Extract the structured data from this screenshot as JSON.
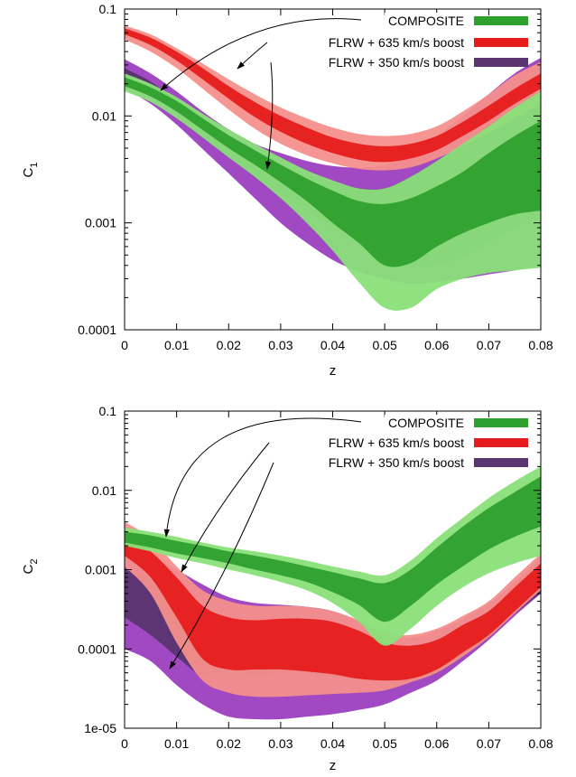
{
  "chart_data": [
    {
      "type": "area",
      "ylabel": "C",
      "ylabel_subscript": "1",
      "xlabel": "z",
      "xlim": [
        0,
        0.08
      ],
      "ylim": [
        0.0001,
        0.1
      ],
      "yscale": "log",
      "grid": false,
      "legend_position": "top-right",
      "x_ticks": [
        0,
        0.01,
        0.02,
        0.03,
        0.04,
        0.05,
        0.06,
        0.07,
        0.08
      ],
      "x_tick_labels": [
        "0",
        "0.01",
        "0.02",
        "0.03",
        "0.04",
        "0.05",
        "0.06",
        "0.07",
        "0.08"
      ],
      "y_ticks": [
        0.0001,
        0.001,
        0.01,
        0.1
      ],
      "y_tick_labels": [
        "0.0001",
        "0.001",
        "0.01",
        "0.1"
      ],
      "x": [
        0,
        0.005,
        0.01,
        0.015,
        0.02,
        0.025,
        0.03,
        0.035,
        0.04,
        0.045,
        0.05,
        0.055,
        0.06,
        0.065,
        0.07,
        0.075,
        0.08
      ],
      "series": [
        {
          "name": "FLRW + 350 km/s boost",
          "color_outer": "#9b3fc0",
          "color_inner": "#5a3570",
          "outer_upper": [
            0.034,
            0.025,
            0.017,
            0.011,
            0.0075,
            0.0055,
            0.0045,
            0.0038,
            0.0034,
            0.0033,
            0.0035,
            0.0045,
            0.0065,
            0.01,
            0.016,
            0.025,
            0.035
          ],
          "inner_upper": [
            0.028,
            0.021,
            0.014,
            0.0088,
            0.0058,
            0.0042,
            0.0033,
            0.0028,
            0.0024,
            0.0021,
            0.0021,
            0.0027,
            0.0038,
            0.0055,
            0.0085,
            0.013,
            0.019
          ],
          "inner_lower": [
            0.022,
            0.016,
            0.0105,
            0.0065,
            0.0042,
            0.0028,
            0.0019,
            0.0013,
            0.0009,
            0.00065,
            0.00045,
            0.00038,
            0.0004,
            0.00048,
            0.00065,
            0.0009,
            0.0012
          ],
          "outer_lower": [
            0.018,
            0.013,
            0.0083,
            0.0049,
            0.0029,
            0.0017,
            0.001,
            0.00065,
            0.00045,
            0.00035,
            0.0003,
            0.00027,
            0.00028,
            0.0003,
            0.00033,
            0.00036,
            0.0004
          ]
        },
        {
          "name": "FLRW + 635 km/s boost",
          "color_outer": "#f4908c",
          "color_inner": "#e61c1c",
          "outer_upper": [
            0.07,
            0.058,
            0.043,
            0.031,
            0.022,
            0.016,
            0.012,
            0.0095,
            0.0078,
            0.0068,
            0.0065,
            0.0068,
            0.008,
            0.011,
            0.016,
            0.024,
            0.032
          ],
          "inner_upper": [
            0.066,
            0.054,
            0.04,
            0.028,
            0.019,
            0.0135,
            0.01,
            0.0078,
            0.0063,
            0.0055,
            0.0052,
            0.0055,
            0.0065,
            0.0088,
            0.0125,
            0.018,
            0.025
          ],
          "inner_lower": [
            0.058,
            0.046,
            0.033,
            0.022,
            0.0145,
            0.0098,
            0.0071,
            0.0055,
            0.0045,
            0.0039,
            0.0037,
            0.004,
            0.0048,
            0.0065,
            0.009,
            0.013,
            0.018
          ],
          "outer_lower": [
            0.052,
            0.04,
            0.028,
            0.018,
            0.0115,
            0.0076,
            0.0055,
            0.0043,
            0.0036,
            0.0032,
            0.0031,
            0.0033,
            0.004,
            0.0052,
            0.007,
            0.0095,
            0.013
          ]
        },
        {
          "name": "COMPOSITE",
          "color_outer": "#8ae07a",
          "color_inner": "#2ea02e",
          "outer_upper": [
            0.025,
            0.02,
            0.015,
            0.0105,
            0.0075,
            0.0055,
            0.0041,
            0.0031,
            0.0025,
            0.0021,
            0.0021,
            0.0027,
            0.0038,
            0.0055,
            0.008,
            0.012,
            0.017
          ],
          "inner_upper": [
            0.023,
            0.0185,
            0.0138,
            0.0095,
            0.0066,
            0.0048,
            0.0035,
            0.0026,
            0.002,
            0.0016,
            0.0015,
            0.0017,
            0.0022,
            0.003,
            0.0045,
            0.0065,
            0.009
          ],
          "inner_lower": [
            0.019,
            0.0152,
            0.011,
            0.0074,
            0.005,
            0.0035,
            0.0024,
            0.0016,
            0.001,
            0.00065,
            0.0004,
            0.00042,
            0.0006,
            0.0008,
            0.001,
            0.0012,
            0.0013
          ],
          "outer_lower": [
            0.017,
            0.0135,
            0.0095,
            0.0063,
            0.0041,
            0.0027,
            0.0017,
            0.001,
            0.00055,
            0.00028,
            0.00016,
            0.00016,
            0.00024,
            0.0003,
            0.00034,
            0.00036,
            0.00038
          ]
        }
      ],
      "legend": [
        {
          "label": "COMPOSITE",
          "color": "#2ea02e"
        },
        {
          "label": "FLRW + 635 km/s boost",
          "color": "#e61c1c"
        },
        {
          "label": "FLRW + 350 km/s boost",
          "color": "#5a3570"
        }
      ]
    },
    {
      "type": "area",
      "ylabel": "C",
      "ylabel_subscript": "2",
      "xlabel": "z",
      "xlim": [
        0,
        0.08
      ],
      "ylim": [
        1e-05,
        0.1
      ],
      "yscale": "log",
      "grid": false,
      "legend_position": "top-right",
      "x_ticks": [
        0,
        0.01,
        0.02,
        0.03,
        0.04,
        0.05,
        0.06,
        0.07,
        0.08
      ],
      "x_tick_labels": [
        "0",
        "0.01",
        "0.02",
        "0.03",
        "0.04",
        "0.05",
        "0.06",
        "0.07",
        "0.08"
      ],
      "y_ticks": [
        1e-05,
        0.0001,
        0.001,
        0.01,
        0.1
      ],
      "y_tick_labels": [
        "1e-05",
        "0.0001",
        "0.001",
        "0.01",
        "0.1"
      ],
      "x": [
        0,
        0.005,
        0.01,
        0.015,
        0.02,
        0.025,
        0.03,
        0.035,
        0.04,
        0.045,
        0.05,
        0.055,
        0.06,
        0.065,
        0.07,
        0.075,
        0.08
      ],
      "series": [
        {
          "name": "FLRW + 350 km/s boost",
          "color_outer": "#9b3fc0",
          "color_inner": "#5a3570",
          "outer_upper": [
            0.0019,
            0.0015,
            0.001,
            0.00065,
            0.00045,
            0.00038,
            0.00036,
            0.00034,
            0.0003,
            0.00022,
            0.00015,
            0.00014,
            0.00017,
            0.00024,
            0.00038,
            0.0007,
            0.0015
          ],
          "inner_upper": [
            0.001,
            0.00075,
            0.00042,
            0.00015,
            0.0001,
            0.00012,
            0.00013,
            0.00011,
            9e-05,
            7e-05,
            5.5e-05,
            5.5e-05,
            7e-05,
            0.0001,
            0.00018,
            0.00035,
            0.0007
          ],
          "inner_lower": [
            0.00025,
            0.00015,
            8e-05,
            4.5e-05,
            4e-05,
            4.5e-05,
            5e-05,
            5e-05,
            4.5e-05,
            4e-05,
            4e-05,
            4e-05,
            5e-05,
            8e-05,
            0.00014,
            0.00028,
            0.0005
          ],
          "outer_lower": [
            0.0001,
            7e-05,
            3.5e-05,
            2e-05,
            1.4e-05,
            1.3e-05,
            1.3e-05,
            1.4e-05,
            1.5e-05,
            1.7e-05,
            2e-05,
            2.8e-05,
            4e-05,
            7e-05,
            0.00013,
            0.00026,
            0.0005
          ]
        },
        {
          "name": "FLRW + 635 km/s boost",
          "color_outer": "#f4908c",
          "color_inner": "#e61c1c",
          "outer_upper": [
            0.004,
            0.0025,
            0.0011,
            0.00055,
            0.0004,
            0.00035,
            0.00035,
            0.00034,
            0.0003,
            0.00023,
            0.00016,
            0.00015,
            0.00018,
            0.00026,
            0.0004,
            0.0008,
            0.0016
          ],
          "inner_upper": [
            0.0028,
            0.0017,
            0.0008,
            0.00035,
            0.00025,
            0.00023,
            0.00024,
            0.00024,
            0.00022,
            0.00017,
            0.00012,
            0.00011,
            0.00013,
            0.0002,
            0.0003,
            0.0006,
            0.0012
          ],
          "inner_lower": [
            0.0015,
            0.0008,
            0.00025,
            7.5e-05,
            5.5e-05,
            5.5e-05,
            5.5e-05,
            5.2e-05,
            4.8e-05,
            4.2e-05,
            4e-05,
            4.2e-05,
            5.5e-05,
            9e-05,
            0.00015,
            0.0003,
            0.0006
          ],
          "outer_lower": [
            0.0011,
            0.0005,
            0.00012,
            4e-05,
            2.8e-05,
            2.5e-05,
            2.5e-05,
            2.6e-05,
            2.7e-05,
            2.8e-05,
            3e-05,
            3.8e-05,
            5e-05,
            8e-05,
            0.00014,
            0.00028,
            0.00055
          ]
        },
        {
          "name": "COMPOSITE",
          "color_outer": "#8ae07a",
          "color_inner": "#2ea02e",
          "outer_upper": [
            0.0034,
            0.003,
            0.0026,
            0.0022,
            0.0019,
            0.0017,
            0.0015,
            0.0013,
            0.0011,
            0.00095,
            0.00085,
            0.0013,
            0.0025,
            0.0045,
            0.008,
            0.013,
            0.02
          ],
          "inner_upper": [
            0.003,
            0.0027,
            0.0023,
            0.002,
            0.0017,
            0.0015,
            0.0013,
            0.0011,
            0.00093,
            0.00078,
            0.00068,
            0.001,
            0.0019,
            0.0035,
            0.006,
            0.0095,
            0.015
          ],
          "inner_lower": [
            0.0022,
            0.0019,
            0.0016,
            0.0014,
            0.0012,
            0.001,
            0.00085,
            0.0007,
            0.00052,
            0.00036,
            0.00022,
            0.00035,
            0.00065,
            0.0011,
            0.0018,
            0.0026,
            0.0035
          ],
          "outer_lower": [
            0.002,
            0.0017,
            0.0014,
            0.0012,
            0.001,
            0.00085,
            0.0007,
            0.00055,
            0.00038,
            0.00022,
            0.00011,
            0.00018,
            0.00035,
            0.0006,
            0.0009,
            0.0012,
            0.0015
          ]
        }
      ],
      "legend": [
        {
          "label": "COMPOSITE",
          "color": "#2ea02e"
        },
        {
          "label": "FLRW + 635 km/s boost",
          "color": "#e61c1c"
        },
        {
          "label": "FLRW + 350 km/s boost",
          "color": "#5a3570"
        }
      ]
    }
  ]
}
